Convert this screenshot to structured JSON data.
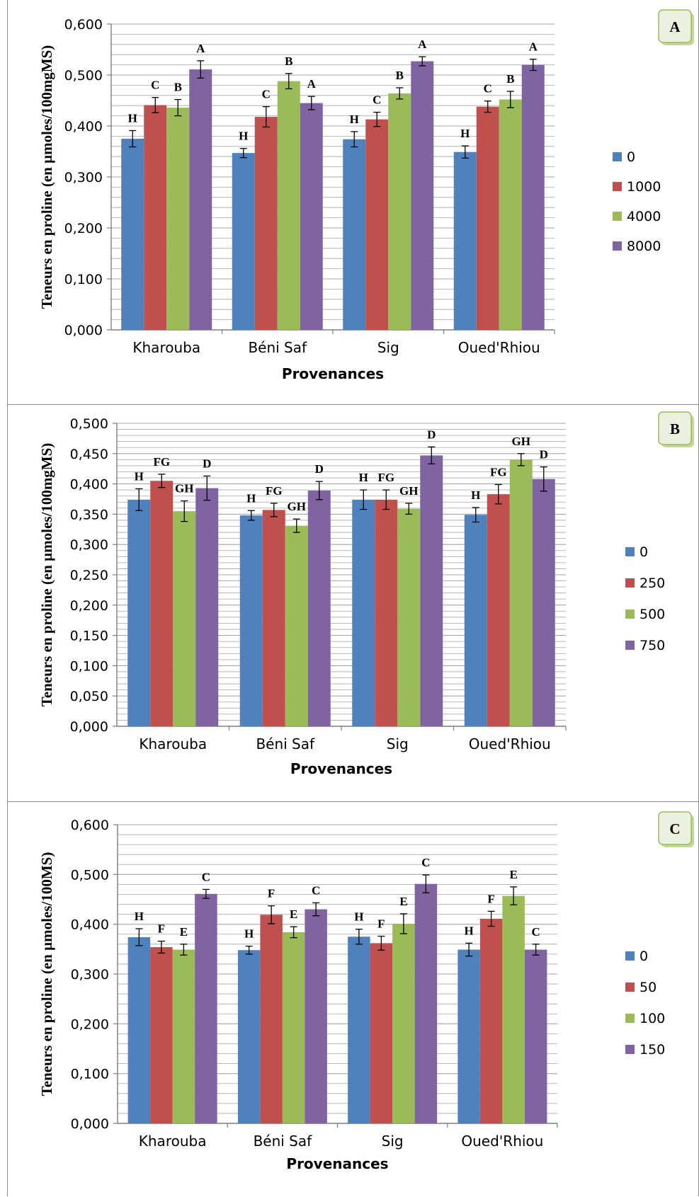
{
  "colors": {
    "series": [
      "#4F81BD",
      "#C0504D",
      "#9BBB59",
      "#8064A2"
    ],
    "grid": "#a6a6a6",
    "badge_fill": "#ebf1de",
    "badge_stroke": "#9bbb59"
  },
  "chart_data": [
    {
      "type": "bar",
      "panel_label": "A",
      "categories": [
        "Kharouba",
        "Béni Saf",
        "Sig",
        "Oued'Rhiou"
      ],
      "xlabel": "Provenances",
      "ylabel": "Teneurs en proline (en µmoles/100mgMS)",
      "ylim": [
        0,
        0.6
      ],
      "yticks": [
        "0,000",
        "0,100",
        "0,200",
        "0,300",
        "0,400",
        "0,500",
        "0,600"
      ],
      "grid": true,
      "legend_position": "right",
      "series": [
        {
          "name": "0",
          "values": [
            0.375,
            0.347,
            0.374,
            0.349
          ],
          "errors": [
            0.016,
            0.009,
            0.015,
            0.012
          ],
          "letters": [
            "H",
            "H",
            "H",
            "H"
          ]
        },
        {
          "name": "1000",
          "values": [
            0.441,
            0.418,
            0.413,
            0.438
          ],
          "errors": [
            0.015,
            0.02,
            0.014,
            0.011
          ],
          "letters": [
            "C",
            "C",
            "C",
            "C"
          ]
        },
        {
          "name": "4000",
          "values": [
            0.436,
            0.488,
            0.464,
            0.452
          ],
          "errors": [
            0.016,
            0.015,
            0.011,
            0.016
          ],
          "letters": [
            "B",
            "B",
            "B",
            "B"
          ]
        },
        {
          "name": "8000",
          "values": [
            0.511,
            0.445,
            0.527,
            0.52
          ],
          "errors": [
            0.017,
            0.013,
            0.009,
            0.011
          ],
          "letters": [
            "A",
            "A",
            "A",
            "A"
          ]
        }
      ]
    },
    {
      "type": "bar",
      "panel_label": "B",
      "categories": [
        "Kharouba",
        "Béni Saf",
        "Sig",
        "Oued'Rhiou"
      ],
      "xlabel": "Provenances",
      "ylabel": "Teneurs en proline (en µmoles/100mgMS)",
      "ylim": [
        0,
        0.5
      ],
      "yticks": [
        "0,000",
        "0,050",
        "0,100",
        "0,150",
        "0,200",
        "0,250",
        "0,300",
        "0,350",
        "0,400",
        "0,450",
        "0,500"
      ],
      "grid": true,
      "legend_position": "right",
      "series": [
        {
          "name": "0",
          "values": [
            0.374,
            0.348,
            0.374,
            0.349
          ],
          "errors": [
            0.018,
            0.008,
            0.016,
            0.012
          ],
          "letters": [
            "H",
            "H",
            "H",
            "H"
          ]
        },
        {
          "name": "250",
          "values": [
            0.405,
            0.357,
            0.374,
            0.383
          ],
          "errors": [
            0.011,
            0.011,
            0.016,
            0.016
          ],
          "letters": [
            "FG",
            "FG",
            "FG",
            "FG"
          ]
        },
        {
          "name": "500",
          "values": [
            0.355,
            0.331,
            0.359,
            0.44
          ],
          "errors": [
            0.017,
            0.011,
            0.009,
            0.01
          ],
          "letters": [
            "GH",
            "GH",
            "GH",
            "GH"
          ]
        },
        {
          "name": "750",
          "values": [
            0.393,
            0.389,
            0.447,
            0.408
          ],
          "errors": [
            0.02,
            0.015,
            0.014,
            0.02
          ],
          "letters": [
            "D",
            "D",
            "D",
            "D"
          ]
        }
      ]
    },
    {
      "type": "bar",
      "panel_label": "C",
      "categories": [
        "Kharouba",
        "Béni Saf",
        "Sig",
        "Oued'Rhiou"
      ],
      "xlabel": "Provenances",
      "ylabel": "Teneurs en proline (en µmoles/100MS)",
      "ylim": [
        0,
        0.6
      ],
      "yticks": [
        "0,000",
        "0,100",
        "0,200",
        "0,300",
        "0,400",
        "0,500",
        "0,600"
      ],
      "grid": true,
      "legend_position": "right",
      "series": [
        {
          "name": "0",
          "values": [
            0.374,
            0.348,
            0.375,
            0.349
          ],
          "errors": [
            0.017,
            0.008,
            0.015,
            0.013
          ],
          "letters": [
            "H",
            "H",
            "H",
            "H"
          ]
        },
        {
          "name": "50",
          "values": [
            0.354,
            0.419,
            0.362,
            0.411
          ],
          "errors": [
            0.012,
            0.018,
            0.014,
            0.015
          ],
          "letters": [
            "F",
            "F",
            "F",
            "F"
          ]
        },
        {
          "name": "100",
          "values": [
            0.349,
            0.384,
            0.401,
            0.457
          ],
          "errors": [
            0.011,
            0.011,
            0.02,
            0.018
          ],
          "letters": [
            "E",
            "E",
            "E",
            "E"
          ]
        },
        {
          "name": "150",
          "values": [
            0.461,
            0.43,
            0.481,
            0.349
          ],
          "errors": [
            0.009,
            0.013,
            0.018,
            0.011
          ],
          "letters": [
            "C",
            "C",
            "C",
            "C"
          ]
        }
      ]
    }
  ]
}
